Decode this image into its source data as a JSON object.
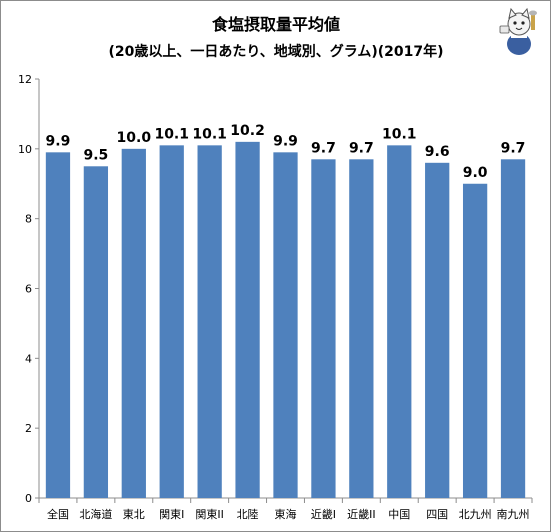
{
  "chart_data": {
    "type": "bar",
    "title": "食塩摂取量平均値",
    "subtitle": "(20歳以上、一日あたり、地域別、グラム)(2017年)",
    "xlabel": "",
    "ylabel": "",
    "categories": [
      "全国",
      "北海道",
      "東北",
      "関東I",
      "関東II",
      "北陸",
      "東海",
      "近畿I",
      "近畿II",
      "中国",
      "四国",
      "北九州",
      "南九州"
    ],
    "values": [
      9.9,
      9.5,
      10.0,
      10.1,
      10.1,
      10.2,
      9.9,
      9.7,
      9.7,
      10.1,
      9.6,
      9.0,
      9.7
    ],
    "data_labels": [
      "9.9",
      "9.5",
      "10.0",
      "10.1",
      "10.1",
      "10.2",
      "9.9",
      "9.7",
      "9.7",
      "10.1",
      "9.6",
      "9.0",
      "9.7"
    ],
    "ylim": [
      0,
      12
    ],
    "yticks": [
      "0",
      "2",
      "4",
      "6",
      "8",
      "10",
      "12"
    ],
    "grid": false,
    "legend": "none",
    "bar_color": "#4f81bd"
  },
  "mascot": {
    "icon": "cat-mascot-icon"
  }
}
